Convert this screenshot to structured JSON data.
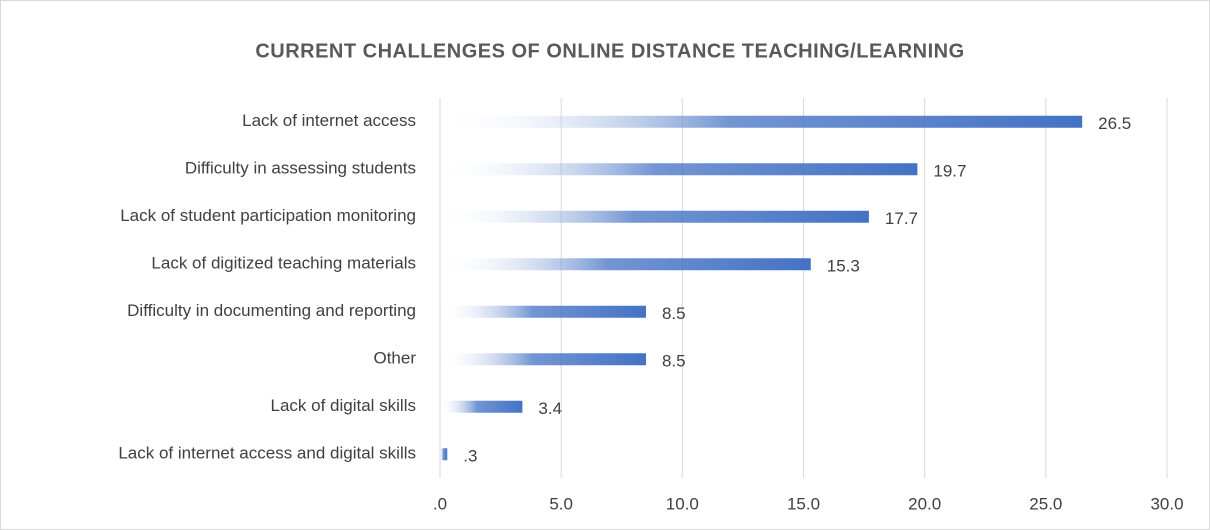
{
  "chart_data": {
    "type": "bar",
    "orientation": "horizontal",
    "title": "CURRENT CHALLENGES OF ONLINE DISTANCE TEACHING/LEARNING",
    "categories": [
      "Lack of internet access",
      "Difficulty in assessing students",
      "Lack of student participation monitoring",
      "Lack of digitized teaching materials",
      "Difficulty in documenting and reporting",
      "Other",
      "Lack of digital skills",
      "Lack of internet access and digital skills"
    ],
    "values": [
      26.5,
      19.7,
      17.7,
      15.3,
      8.5,
      8.5,
      3.4,
      0.3
    ],
    "value_labels": [
      "26.5",
      "19.7",
      "17.7",
      "15.3",
      "8.5",
      "8.5",
      "3.4",
      ".3"
    ],
    "color": "#4472c4",
    "xlim": [
      0,
      30
    ],
    "xticks": [
      {
        "value": 0,
        "label": ".0"
      },
      {
        "value": 5,
        "label": "5.0"
      },
      {
        "value": 10,
        "label": "10.0"
      },
      {
        "value": 15,
        "label": "15.0"
      },
      {
        "value": 20,
        "label": "20.0"
      },
      {
        "value": 25,
        "label": "25.0"
      },
      {
        "value": 30,
        "label": "30.0"
      }
    ],
    "grid": true
  }
}
